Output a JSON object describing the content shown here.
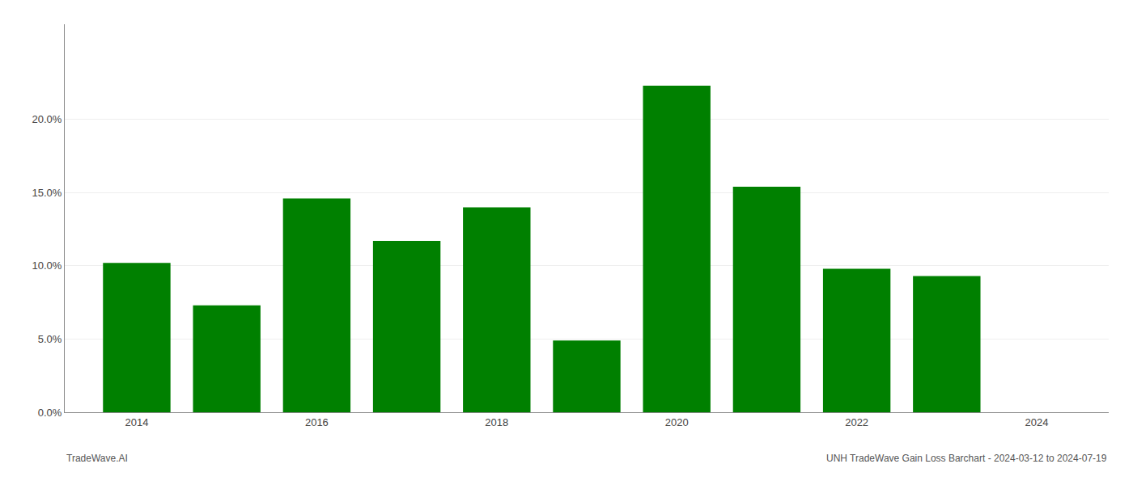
{
  "chart_data": {
    "type": "bar",
    "x": [
      2014,
      2015,
      2016,
      2017,
      2018,
      2019,
      2020,
      2021,
      2022,
      2023
    ],
    "values": [
      0.102,
      0.073,
      0.146,
      0.117,
      0.14,
      0.049,
      0.223,
      0.154,
      0.098,
      0.093
    ],
    "color": "#008000",
    "xlim": [
      2013.2,
      2024.8
    ],
    "xticks": [
      2014,
      2016,
      2018,
      2020,
      2022,
      2024
    ],
    "ylim": [
      0.0,
      0.265
    ],
    "yticks": [
      {
        "value": 0.0,
        "label": "0.0%"
      },
      {
        "value": 0.05,
        "label": "5.0%"
      },
      {
        "value": 0.1,
        "label": "10.0%"
      },
      {
        "value": 0.15,
        "label": "15.0%"
      },
      {
        "value": 0.2,
        "label": "20.0%"
      }
    ],
    "grid": true,
    "annotations": [
      "TradeWave.AI",
      "UNH TradeWave Gain Loss Barchart - 2024-03-12 to 2024-07-19"
    ]
  }
}
